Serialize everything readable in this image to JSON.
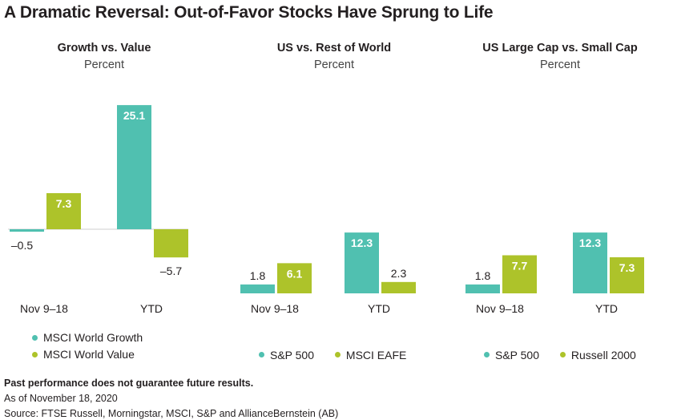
{
  "title": "A Dramatic Reversal: Out-of-Favor Stocks Have Sprung to Life",
  "colors": {
    "teal": "#50c0b0",
    "green": "#adc32a"
  },
  "chart_data": [
    {
      "type": "bar",
      "title": "Growth vs. Value",
      "subtitle": "Percent",
      "categories": [
        "Nov 9–18",
        "YTD"
      ],
      "series": [
        {
          "name": "MSCI World Growth",
          "values": [
            -0.5,
            25.1
          ],
          "labels": [
            "–0.5",
            "25.1"
          ]
        },
        {
          "name": "MSCI World Value",
          "values": [
            7.3,
            -5.7
          ],
          "labels": [
            "7.3",
            "–5.7"
          ]
        }
      ],
      "legend": "bottom-stacked"
    },
    {
      "type": "bar",
      "title": "US vs. Rest of World",
      "subtitle": "Percent",
      "categories": [
        "Nov 9–18",
        "YTD"
      ],
      "series": [
        {
          "name": "S&P 500",
          "values": [
            1.8,
            12.3
          ],
          "labels": [
            "1.8",
            "12.3"
          ]
        },
        {
          "name": "MSCI EAFE",
          "values": [
            6.1,
            2.3
          ],
          "labels": [
            "6.1",
            "2.3"
          ]
        }
      ],
      "legend": "bottom"
    },
    {
      "type": "bar",
      "title": "US Large Cap vs. Small Cap",
      "subtitle": "Percent",
      "categories": [
        "Nov 9–18",
        "YTD"
      ],
      "series": [
        {
          "name": "S&P 500",
          "values": [
            1.8,
            12.3
          ],
          "labels": [
            "1.8",
            "12.3"
          ]
        },
        {
          "name": "Russell 2000",
          "values": [
            7.7,
            7.3
          ],
          "labels": [
            "7.7",
            "7.3"
          ]
        }
      ],
      "legend": "bottom"
    }
  ],
  "footer": {
    "disclaimer": "Past performance does not guarantee future results.",
    "as_of": "As of November 18, 2020",
    "source": "Source: FTSE Russell, Morningstar, MSCI, S&P and AllianceBernstein (AB)"
  }
}
